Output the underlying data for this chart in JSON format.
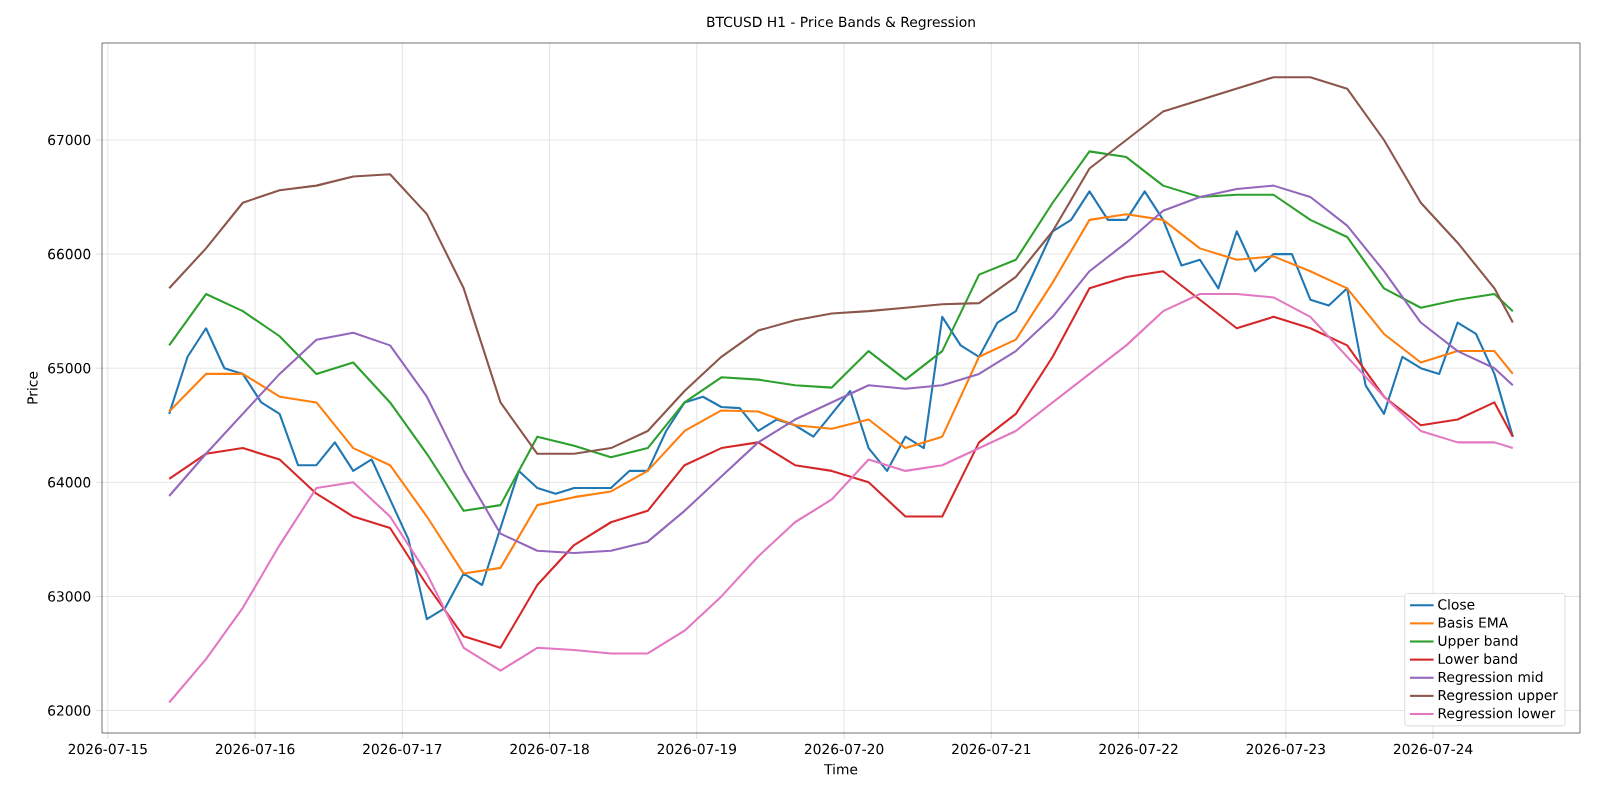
{
  "chart_data": {
    "type": "line",
    "title": "BTCUSD H1 - Price Bands & Regression",
    "xlabel": "Time",
    "ylabel": "Price",
    "xlim": [
      "2026-07-14T23:03",
      "2026-07-24T23:57"
    ],
    "xticks": [
      "2026-07-15",
      "2026-07-16",
      "2026-07-17",
      "2026-07-18",
      "2026-07-19",
      "2026-07-20",
      "2026-07-21",
      "2026-07-22",
      "2026-07-23",
      "2026-07-24"
    ],
    "ylim": [
      61803,
      67850
    ],
    "yticks": [
      62000,
      63000,
      64000,
      65000,
      66000,
      67000
    ],
    "grid": true,
    "legend": "bottom right",
    "x": [
      "2026-07-15T10:00",
      "2026-07-15T16:00",
      "2026-07-15T22:00",
      "2026-07-16T04:00",
      "2026-07-16T10:00",
      "2026-07-16T16:00",
      "2026-07-16T22:00",
      "2026-07-17T04:00",
      "2026-07-17T10:00",
      "2026-07-17T16:00",
      "2026-07-17T22:00",
      "2026-07-18T04:00",
      "2026-07-18T10:00",
      "2026-07-18T16:00",
      "2026-07-18T22:00",
      "2026-07-19T04:00",
      "2026-07-19T10:00",
      "2026-07-19T16:00",
      "2026-07-19T22:00",
      "2026-07-20T04:00",
      "2026-07-20T10:00",
      "2026-07-20T16:00",
      "2026-07-20T22:00",
      "2026-07-21T04:00",
      "2026-07-21T10:00",
      "2026-07-21T16:00",
      "2026-07-21T22:00",
      "2026-07-22T04:00",
      "2026-07-22T10:00",
      "2026-07-22T16:00",
      "2026-07-22T22:00",
      "2026-07-23T04:00",
      "2026-07-23T10:00",
      "2026-07-23T16:00",
      "2026-07-23T22:00",
      "2026-07-24T04:00",
      "2026-07-24T10:00",
      "2026-07-24T13:00"
    ],
    "series": [
      {
        "name": "Close",
        "color": "#1f77b4",
        "x": [
          "2026-07-15T10:00",
          "2026-07-15T13:00",
          "2026-07-15T16:00",
          "2026-07-15T19:00",
          "2026-07-15T22:00",
          "2026-07-16T01:00",
          "2026-07-16T04:00",
          "2026-07-16T07:00",
          "2026-07-16T10:00",
          "2026-07-16T13:00",
          "2026-07-16T16:00",
          "2026-07-16T19:00",
          "2026-07-16T22:00",
          "2026-07-17T01:00",
          "2026-07-17T04:00",
          "2026-07-17T07:00",
          "2026-07-17T10:00",
          "2026-07-17T13:00",
          "2026-07-17T16:00",
          "2026-07-17T19:00",
          "2026-07-17T22:00",
          "2026-07-18T01:00",
          "2026-07-18T04:00",
          "2026-07-18T07:00",
          "2026-07-18T10:00",
          "2026-07-18T13:00",
          "2026-07-18T16:00",
          "2026-07-18T19:00",
          "2026-07-18T22:00",
          "2026-07-19T01:00",
          "2026-07-19T04:00",
          "2026-07-19T07:00",
          "2026-07-19T10:00",
          "2026-07-19T13:00",
          "2026-07-19T16:00",
          "2026-07-19T19:00",
          "2026-07-19T22:00",
          "2026-07-20T01:00",
          "2026-07-20T04:00",
          "2026-07-20T07:00",
          "2026-07-20T10:00",
          "2026-07-20T13:00",
          "2026-07-20T16:00",
          "2026-07-20T19:00",
          "2026-07-20T22:00",
          "2026-07-21T01:00",
          "2026-07-21T04:00",
          "2026-07-21T07:00",
          "2026-07-21T10:00",
          "2026-07-21T13:00",
          "2026-07-21T16:00",
          "2026-07-21T19:00",
          "2026-07-21T22:00",
          "2026-07-22T01:00",
          "2026-07-22T04:00",
          "2026-07-22T07:00",
          "2026-07-22T10:00",
          "2026-07-22T13:00",
          "2026-07-22T16:00",
          "2026-07-22T19:00",
          "2026-07-22T22:00",
          "2026-07-23T01:00",
          "2026-07-23T04:00",
          "2026-07-23T07:00",
          "2026-07-23T10:00",
          "2026-07-23T13:00",
          "2026-07-23T16:00",
          "2026-07-23T19:00",
          "2026-07-23T22:00",
          "2026-07-24T01:00",
          "2026-07-24T04:00",
          "2026-07-24T07:00",
          "2026-07-24T10:00",
          "2026-07-24T13:00"
        ],
        "values": [
          64600,
          65100,
          65350,
          65000,
          64950,
          64700,
          64600,
          64150,
          64150,
          64350,
          64100,
          64200,
          63850,
          63500,
          62800,
          62900,
          63200,
          63100,
          63600,
          64100,
          63950,
          63900,
          63950,
          63950,
          63950,
          64100,
          64100,
          64450,
          64700,
          64750,
          64660,
          64650,
          64450,
          64550,
          64500,
          64400,
          64600,
          64800,
          64300,
          64100,
          64400,
          64300,
          65450,
          65200,
          65100,
          65400,
          65500,
          65850,
          66200,
          66300,
          66550,
          66300,
          66300,
          66550,
          66300,
          65900,
          65950,
          65700,
          66200,
          65850,
          66000,
          66000,
          65600,
          65550,
          65700,
          64850,
          64600,
          65100,
          65000,
          64950,
          65400,
          65300,
          64950,
          64400
        ]
      },
      {
        "name": "Basis EMA",
        "color": "#ff7f0e",
        "values": [
          64620,
          64950,
          64950,
          64750,
          64700,
          64300,
          64150,
          63700,
          63200,
          63250,
          63800,
          63870,
          63920,
          64100,
          64450,
          64630,
          64620,
          64500,
          64470,
          64550,
          64300,
          64400,
          65100,
          65250,
          65750,
          66300,
          66350,
          66300,
          66050,
          65950,
          65980,
          65850,
          65700,
          65300,
          65050,
          65150,
          65150,
          64950
        ]
      },
      {
        "name": "Upper band",
        "color": "#2ca02c",
        "values": [
          65200,
          65650,
          65500,
          65280,
          64950,
          65050,
          64700,
          64250,
          63750,
          63800,
          64400,
          64320,
          64220,
          64300,
          64700,
          64920,
          64900,
          64850,
          64830,
          65150,
          64900,
          65150,
          65820,
          65950,
          66450,
          66900,
          66850,
          66600,
          66500,
          66520,
          66520,
          66300,
          66150,
          65700,
          65530,
          65600,
          65650,
          65500
        ]
      },
      {
        "name": "Lower band",
        "color": "#d62728",
        "values": [
          64030,
          64250,
          64300,
          64200,
          63900,
          63700,
          63600,
          63100,
          62650,
          62550,
          63100,
          63450,
          63650,
          63750,
          64150,
          64300,
          64350,
          64150,
          64100,
          64000,
          63700,
          63700,
          64350,
          64600,
          65100,
          65700,
          65800,
          65850,
          65600,
          65350,
          65450,
          65350,
          65200,
          64750,
          64500,
          64550,
          64700,
          64400
        ]
      },
      {
        "name": "Regression mid",
        "color": "#9467bd",
        "values": [
          63880,
          64250,
          64600,
          64950,
          65250,
          65310,
          65200,
          64750,
          64100,
          63550,
          63400,
          63380,
          63400,
          63480,
          63750,
          64050,
          64350,
          64550,
          64700,
          64850,
          64820,
          64850,
          64950,
          65150,
          65450,
          65850,
          66100,
          66380,
          66500,
          66570,
          66600,
          66500,
          66250,
          65850,
          65400,
          65150,
          65000,
          64850
        ]
      },
      {
        "name": "Regression upper",
        "color": "#8c564b",
        "values": [
          65700,
          66050,
          66450,
          66560,
          66600,
          66680,
          66700,
          66350,
          65700,
          64700,
          64250,
          64250,
          64300,
          64450,
          64800,
          65100,
          65330,
          65420,
          65480,
          65500,
          65530,
          65560,
          65570,
          65800,
          66200,
          66750,
          67000,
          67250,
          67350,
          67450,
          67550,
          67550,
          67450,
          67000,
          66450,
          66100,
          65700,
          65400
        ]
      },
      {
        "name": "Regression lower",
        "color": "#e377c2",
        "values": [
          62070,
          62450,
          62900,
          63450,
          63950,
          64000,
          63700,
          63200,
          62550,
          62350,
          62550,
          62530,
          62500,
          62500,
          62700,
          63000,
          63350,
          63650,
          63850,
          64200,
          64100,
          64150,
          64300,
          64450,
          64700,
          64950,
          65200,
          65500,
          65650,
          65650,
          65620,
          65450,
          65100,
          64750,
          64450,
          64350,
          64350,
          64300
        ]
      }
    ]
  }
}
